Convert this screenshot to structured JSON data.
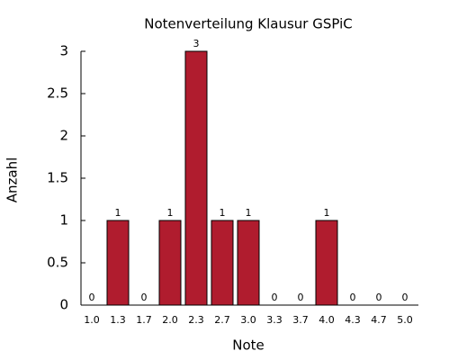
{
  "chart_data": {
    "type": "bar",
    "title": "Notenverteilung Klausur GSPiC",
    "x_label": "Note",
    "y_label": "Anzahl",
    "categories": [
      "1.0",
      "1.3",
      "1.7",
      "2.0",
      "2.3",
      "2.7",
      "3.0",
      "3.3",
      "3.7",
      "4.0",
      "4.3",
      "4.7",
      "5.0"
    ],
    "values": [
      0,
      1,
      0,
      1,
      3,
      1,
      1,
      0,
      0,
      1,
      0,
      0,
      0
    ],
    "color": "#b01c2e",
    "ylim": [
      0,
      3
    ],
    "yticks": [
      0,
      0.5,
      1,
      1.5,
      2,
      2.5,
      3
    ],
    "grid": false
  }
}
